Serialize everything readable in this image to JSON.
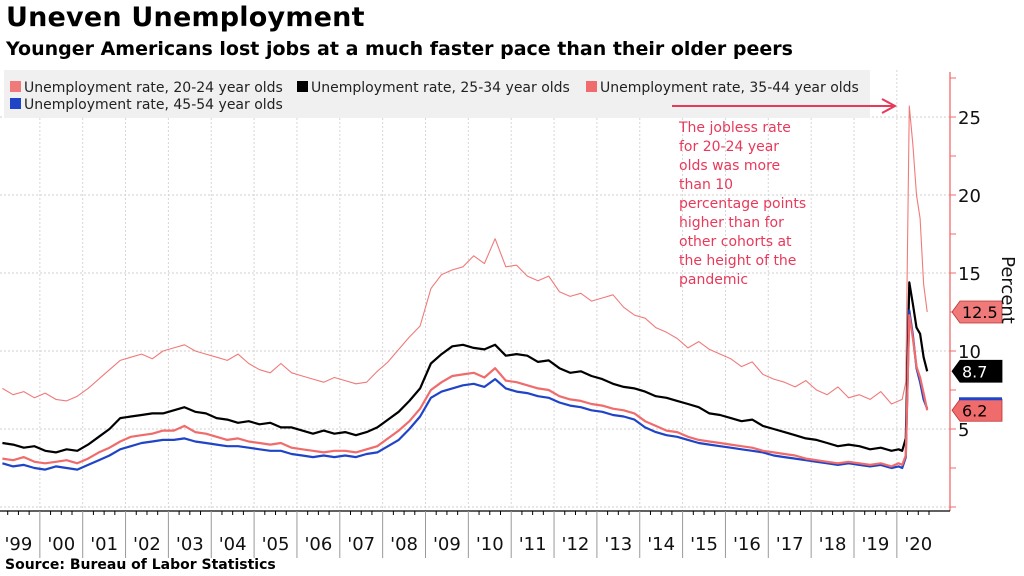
{
  "header": {
    "title": "Uneven Unemployment",
    "subtitle": "Younger Americans lost jobs at a much faster pace than their older peers"
  },
  "footer": {
    "source": "Source: Bureau of Labor Statistics"
  },
  "colors": {
    "age_20_24": "#f07a7a",
    "age_25_34": "#000000",
    "age_35_44": "#f06b6b",
    "age_45_54": "#1f44c8",
    "annotation": "#e8395a",
    "axis": "#f06b6b",
    "legend_bg": "#f0f0f0"
  },
  "chart_data": {
    "type": "line",
    "title": "Uneven Unemployment",
    "subtitle": "Younger Americans lost jobs at a much faster pace than their older peers",
    "xlabel": "",
    "ylabel": "Percent",
    "ylim": [
      0,
      28
    ],
    "yticks": [
      5,
      10,
      15,
      20,
      25
    ],
    "xlim": [
      1999,
      2020.95
    ],
    "xtick_labels": [
      "'99",
      "'00",
      "'01",
      "'02",
      "'03",
      "'04",
      "'05",
      "'06",
      "'07",
      "'08",
      "'09",
      "'10",
      "'11",
      "'12",
      "'13",
      "'14",
      "'15",
      "'16",
      "'17",
      "'18",
      "'19",
      "'20"
    ],
    "grid": true,
    "legend_position": "top-left",
    "x_note": "Quarterly values 1999 Q1–2019 Q4, then monthly Jan–Sep 2020",
    "series": [
      {
        "name": "Unemployment rate, 20-24 year olds",
        "key": "age_20_24",
        "last_value_label": "12.5",
        "quarterly": [
          7.6,
          7.2,
          7.4,
          7.0,
          7.3,
          6.9,
          6.8,
          7.1,
          7.6,
          8.2,
          8.8,
          9.4,
          9.6,
          9.8,
          9.5,
          10.0,
          10.2,
          10.4,
          10.0,
          9.8,
          9.6,
          9.4,
          9.8,
          9.2,
          8.8,
          8.6,
          9.2,
          8.6,
          8.4,
          8.2,
          8.0,
          8.3,
          8.1,
          7.9,
          8.0,
          8.7,
          9.3,
          10.1,
          10.9,
          11.6,
          14.0,
          14.9,
          15.2,
          15.4,
          16.1,
          15.6,
          17.2,
          15.4,
          15.5,
          14.8,
          14.5,
          14.8,
          13.8,
          13.5,
          13.7,
          13.2,
          13.4,
          13.6,
          12.8,
          12.3,
          12.1,
          11.5,
          11.2,
          10.8,
          10.2,
          10.6,
          10.1,
          9.8,
          9.5,
          9.0,
          9.3,
          8.5,
          8.2,
          8.0,
          7.7,
          8.1,
          7.5,
          7.2,
          7.7,
          7.0,
          7.2,
          6.9,
          7.4,
          6.6
        ],
        "monthly_2020": [
          6.8,
          6.9,
          8.0,
          25.7,
          23.2,
          20.0,
          18.5,
          14.3,
          12.5
        ]
      },
      {
        "name": "Unemployment rate, 25-34 year olds",
        "key": "age_25_34",
        "last_value_label": "8.7",
        "quarterly": [
          4.1,
          4.0,
          3.8,
          3.9,
          3.6,
          3.5,
          3.7,
          3.6,
          4.0,
          4.5,
          5.0,
          5.7,
          5.8,
          5.9,
          6.0,
          6.0,
          6.2,
          6.4,
          6.1,
          6.0,
          5.7,
          5.6,
          5.4,
          5.5,
          5.3,
          5.4,
          5.1,
          5.1,
          4.9,
          4.7,
          4.9,
          4.7,
          4.8,
          4.6,
          4.8,
          5.1,
          5.6,
          6.1,
          6.8,
          7.6,
          9.2,
          9.8,
          10.3,
          10.4,
          10.2,
          10.1,
          10.4,
          9.7,
          9.8,
          9.7,
          9.3,
          9.4,
          8.9,
          8.6,
          8.7,
          8.4,
          8.2,
          7.9,
          7.7,
          7.6,
          7.4,
          7.1,
          7.0,
          6.8,
          6.6,
          6.4,
          6.0,
          5.9,
          5.7,
          5.5,
          5.6,
          5.2,
          5.0,
          4.8,
          4.6,
          4.4,
          4.3,
          4.1,
          3.9,
          4.0,
          3.9,
          3.7,
          3.8,
          3.6
        ],
        "monthly_2020": [
          3.7,
          3.6,
          4.4,
          14.4,
          13.0,
          11.5,
          11.1,
          9.6,
          8.7
        ]
      },
      {
        "name": "Unemployment rate, 35-44 year olds",
        "key": "age_35_44",
        "last_value_label": "6.2",
        "quarterly": [
          3.1,
          3.0,
          3.2,
          2.9,
          2.8,
          2.9,
          3.0,
          2.8,
          3.1,
          3.5,
          3.8,
          4.2,
          4.5,
          4.6,
          4.7,
          4.9,
          4.9,
          5.2,
          4.8,
          4.7,
          4.5,
          4.3,
          4.4,
          4.2,
          4.1,
          4.0,
          4.1,
          3.8,
          3.7,
          3.6,
          3.5,
          3.6,
          3.6,
          3.5,
          3.7,
          3.9,
          4.4,
          4.9,
          5.5,
          6.3,
          7.5,
          8.0,
          8.4,
          8.5,
          8.6,
          8.3,
          8.9,
          8.1,
          8.0,
          7.8,
          7.6,
          7.5,
          7.1,
          6.9,
          6.8,
          6.6,
          6.5,
          6.3,
          6.2,
          6.0,
          5.5,
          5.2,
          4.9,
          4.8,
          4.5,
          4.3,
          4.2,
          4.1,
          4.0,
          3.9,
          3.8,
          3.6,
          3.5,
          3.4,
          3.3,
          3.1,
          3.0,
          2.9,
          2.8,
          2.9,
          2.8,
          2.7,
          2.8,
          2.6
        ],
        "monthly_2020": [
          2.8,
          2.7,
          3.3,
          12.3,
          10.8,
          9.0,
          8.3,
          7.3,
          6.2
        ]
      },
      {
        "name": "Unemployment rate, 45-54 year olds",
        "key": "age_45_54",
        "last_value_label": "",
        "quarterly": [
          2.8,
          2.6,
          2.7,
          2.5,
          2.4,
          2.6,
          2.5,
          2.4,
          2.7,
          3.0,
          3.3,
          3.7,
          3.9,
          4.1,
          4.2,
          4.3,
          4.3,
          4.4,
          4.2,
          4.1,
          4.0,
          3.9,
          3.9,
          3.8,
          3.7,
          3.6,
          3.6,
          3.4,
          3.3,
          3.2,
          3.3,
          3.2,
          3.3,
          3.2,
          3.4,
          3.5,
          3.9,
          4.3,
          5.0,
          5.8,
          7.0,
          7.4,
          7.6,
          7.8,
          7.9,
          7.7,
          8.2,
          7.6,
          7.4,
          7.3,
          7.1,
          7.0,
          6.7,
          6.5,
          6.4,
          6.2,
          6.1,
          5.9,
          5.8,
          5.6,
          5.1,
          4.8,
          4.6,
          4.5,
          4.3,
          4.1,
          4.0,
          3.9,
          3.8,
          3.7,
          3.6,
          3.5,
          3.3,
          3.2,
          3.1,
          3.0,
          2.9,
          2.8,
          2.7,
          2.8,
          2.7,
          2.6,
          2.7,
          2.5
        ],
        "monthly_2020": [
          2.6,
          2.5,
          3.2,
          12.6,
          11.0,
          8.9,
          8.0,
          6.9,
          6.3
        ]
      }
    ],
    "annotations": [
      {
        "text_lines": [
          "The jobless rate",
          "for 20-24 year",
          "olds was more",
          "than 10",
          "percentage points",
          "higher than for",
          "other cohorts at",
          "the height of the",
          "pandemic"
        ],
        "arrow_target": "20-24 peak, April 2020"
      }
    ]
  }
}
